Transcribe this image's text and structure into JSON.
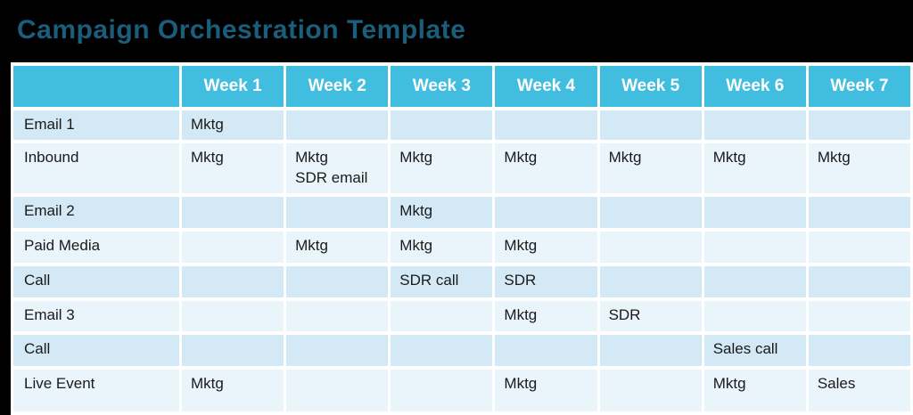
{
  "title": "Campaign Orchestration Template",
  "colors": {
    "page_bg": "#000000",
    "title": "#1A5E7C",
    "header_bg": "#41BEDF",
    "header_text": "#FFFFFF",
    "row_odd": "#D3E9F5",
    "row_even": "#E9F4FB",
    "grid": "#FFFFFF",
    "body_text": "#1A1A1A"
  },
  "table": {
    "columns": [
      "",
      "Week 1",
      "Week 2",
      "Week 3",
      "Week 4",
      "Week 5",
      "Week 6",
      "Week 7"
    ],
    "rows": [
      {
        "label": "Email 1",
        "cells": [
          "Mktg",
          "",
          "",
          "",
          "",
          "",
          ""
        ]
      },
      {
        "label": "Inbound",
        "cells": [
          "Mktg",
          "Mktg\nSDR email",
          "Mktg",
          "Mktg",
          "Mktg",
          "Mktg",
          "Mktg"
        ]
      },
      {
        "label": "Email 2",
        "cells": [
          "",
          "",
          "Mktg",
          "",
          "",
          "",
          ""
        ]
      },
      {
        "label": "Paid Media",
        "cells": [
          "",
          "Mktg",
          "Mktg",
          "Mktg",
          "",
          "",
          ""
        ]
      },
      {
        "label": "Call",
        "cells": [
          "",
          "",
          "SDR call",
          "SDR",
          "",
          "",
          ""
        ]
      },
      {
        "label": "Email 3",
        "cells": [
          "",
          "",
          "",
          "Mktg",
          "SDR",
          "",
          ""
        ]
      },
      {
        "label": "Call",
        "cells": [
          "",
          "",
          "",
          "",
          "",
          "Sales call",
          ""
        ]
      },
      {
        "label": "Live Event",
        "cells": [
          "Mktg",
          "",
          "",
          "Mktg",
          "",
          "Mktg",
          "Sales"
        ]
      }
    ]
  }
}
